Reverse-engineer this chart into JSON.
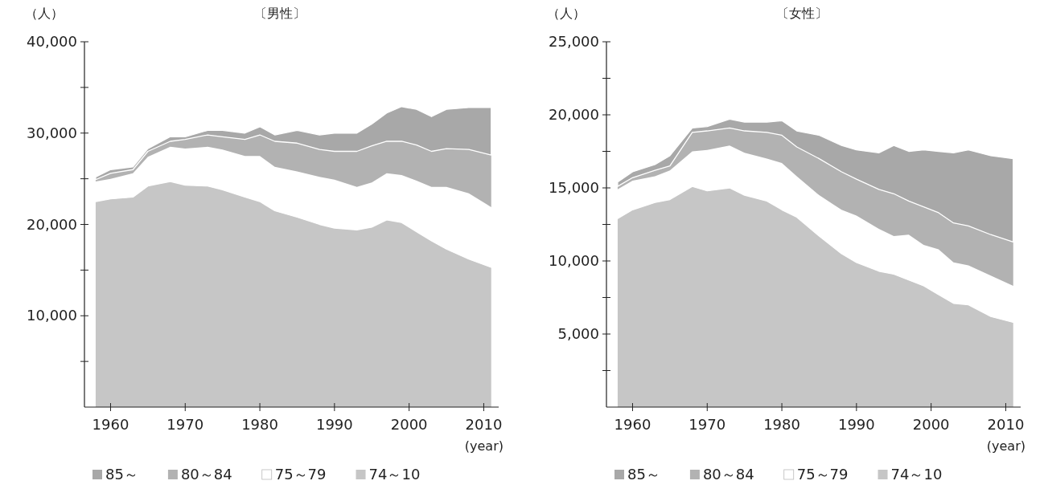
{
  "chart_data": [
    {
      "type": "area",
      "stacked": true,
      "title": "〔男性〕",
      "ylabel": "（人）",
      "xlabel": "(year)",
      "legend": "bottom",
      "grid": false,
      "x": [
        1958,
        1960,
        1963,
        1965,
        1968,
        1970,
        1973,
        1975,
        1978,
        1980,
        1982,
        1985,
        1988,
        1990,
        1993,
        1995,
        1997,
        1999,
        2001,
        2003,
        2005,
        2008,
        2011
      ],
      "xlim": [
        1956.5,
        2012
      ],
      "xticks": [
        1960,
        1970,
        1980,
        1990,
        2000,
        2010
      ],
      "ylim": [
        0,
        40000
      ],
      "yticks": [
        {
          "value": 5000,
          "label": null
        },
        {
          "value": 10000,
          "label": "10,000"
        },
        {
          "value": 15000,
          "label": null
        },
        {
          "value": 20000,
          "label": "20,000"
        },
        {
          "value": 25000,
          "label": null
        },
        {
          "value": 30000,
          "label": "30,000"
        },
        {
          "value": 35000,
          "label": null
        },
        {
          "value": 40000,
          "label": "40,000"
        }
      ],
      "series": [
        {
          "name": "74～10",
          "color": "#c6c6c6",
          "values": [
            22500,
            22800,
            23000,
            24200,
            24700,
            24300,
            24200,
            23800,
            23000,
            22500,
            21500,
            20800,
            20000,
            19600,
            19400,
            19700,
            20500,
            20200,
            19200,
            18200,
            17300,
            16200,
            15300
          ]
        },
        {
          "name": "75～79",
          "color": "#ffffff",
          "values": [
            2200,
            2200,
            2600,
            3200,
            3800,
            4000,
            4300,
            4400,
            4500,
            5000,
            4800,
            5000,
            5200,
            5300,
            4700,
            4900,
            5100,
            5200,
            5600,
            5900,
            6800,
            7200,
            6600
          ]
        },
        {
          "name": "80～84",
          "color": "#b2b2b2",
          "values": [
            200,
            600,
            400,
            600,
            600,
            1000,
            1300,
            1400,
            1800,
            2300,
            2800,
            3100,
            3000,
            3100,
            3900,
            4000,
            3500,
            3700,
            3900,
            3900,
            4200,
            4800,
            5700
          ]
        },
        {
          "name": "85～",
          "color": "#a8a8a8",
          "values": [
            300,
            400,
            300,
            300,
            500,
            300,
            500,
            700,
            700,
            900,
            700,
            1400,
            1600,
            2000,
            2000,
            2400,
            3100,
            3800,
            3900,
            3800,
            4300,
            4600,
            5200
          ]
        }
      ]
    },
    {
      "type": "area",
      "stacked": true,
      "title": "〔女性〕",
      "ylabel": "（人）",
      "xlabel": "(year)",
      "legend": "bottom",
      "grid": false,
      "x": [
        1958,
        1960,
        1963,
        1965,
        1968,
        1970,
        1973,
        1975,
        1978,
        1980,
        1982,
        1985,
        1988,
        1990,
        1993,
        1995,
        1997,
        1999,
        2001,
        2003,
        2005,
        2008,
        2011
      ],
      "xlim": [
        1956.5,
        2012
      ],
      "xticks": [
        1960,
        1970,
        1980,
        1990,
        2000,
        2010
      ],
      "ylim": [
        0,
        25000
      ],
      "yticks": [
        {
          "value": 2500,
          "label": null
        },
        {
          "value": 5000,
          "label": "5,000"
        },
        {
          "value": 7500,
          "label": null
        },
        {
          "value": 10000,
          "label": "10,000"
        },
        {
          "value": 12500,
          "label": null
        },
        {
          "value": 15000,
          "label": "15,000"
        },
        {
          "value": 17500,
          "label": null
        },
        {
          "value": 20000,
          "label": "20,000"
        },
        {
          "value": 22500,
          "label": null
        },
        {
          "value": 25000,
          "label": "25,000"
        }
      ],
      "series": [
        {
          "name": "74～10",
          "color": "#c6c6c6",
          "values": [
            12900,
            13500,
            14000,
            14200,
            15100,
            14800,
            15000,
            14500,
            14100,
            13500,
            13000,
            11700,
            10500,
            9900,
            9300,
            9100,
            8700,
            8300,
            7700,
            7100,
            7000,
            6200,
            5800
          ]
        },
        {
          "name": "75～79",
          "color": "#ffffff",
          "values": [
            2000,
            2000,
            1800,
            2000,
            2400,
            2800,
            2900,
            2900,
            2900,
            3200,
            2800,
            2800,
            3000,
            3200,
            2900,
            2600,
            3100,
            2800,
            3100,
            2800,
            2700,
            2800,
            2500
          ]
        },
        {
          "name": "80～84",
          "color": "#b2b2b2",
          "values": [
            200,
            200,
            400,
            300,
            1300,
            1300,
            1200,
            1500,
            1800,
            1900,
            2000,
            2500,
            2600,
            2500,
            2700,
            2900,
            2300,
            2600,
            2500,
            2700,
            2700,
            2800,
            3000
          ]
        },
        {
          "name": "85～",
          "color": "#a8a8a8",
          "values": [
            300,
            400,
            400,
            700,
            300,
            300,
            600,
            600,
            700,
            1000,
            1100,
            1600,
            1800,
            2000,
            2500,
            3300,
            3400,
            3900,
            4200,
            4800,
            5200,
            5400,
            5700
          ]
        }
      ]
    }
  ]
}
